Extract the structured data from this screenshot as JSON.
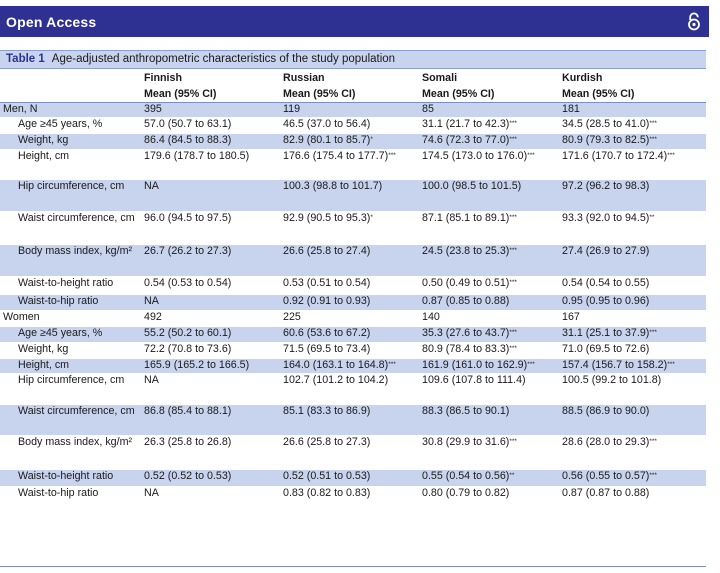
{
  "header": {
    "title": "Open Access",
    "icon": "open-access-icon",
    "color": "#2e3192"
  },
  "caption": {
    "number": "Table 1",
    "text": "Age-adjusted anthropometric characteristics of the study population"
  },
  "columns": [
    "Finnish",
    "Russian",
    "Somali",
    "Kurdish"
  ],
  "subheader": "Mean (95% CI)",
  "rows": [
    {
      "label": "Men, N",
      "group": true,
      "cells": [
        "395",
        "119",
        "85",
        "181"
      ],
      "sups": [
        "",
        "",
        "",
        ""
      ],
      "stripe": true,
      "h": 15
    },
    {
      "label": "Age ≥45 years, %",
      "cells": [
        "57.0 (50.7 to 63.1)",
        "46.5 (37.0 to 56.4)",
        "31.1 (21.7 to 42.3)",
        "34.5 (28.5 to 41.0)"
      ],
      "sups": [
        "",
        "",
        "***",
        "***"
      ],
      "stripe": false,
      "h": 16
    },
    {
      "label": "Weight, kg",
      "cells": [
        "86.4 (84.5 to 88.3)",
        "82.9 (80.1 to 85.7)",
        "74.6 (72.3 to 77.0)",
        "80.9 (79.3 to 82.5)"
      ],
      "sups": [
        "",
        "*",
        "***",
        "***"
      ],
      "stripe": true,
      "h": 16
    },
    {
      "label": "Height, cm",
      "cells": [
        "179.6 (178.7 to 180.5)",
        "176.6 (175.4 to 177.7)",
        "174.5 (173.0 to 176.0)",
        "171.6 (170.7 to 172.4)"
      ],
      "sups": [
        "",
        "***",
        "***",
        "***"
      ],
      "stripe": false,
      "h": 30
    },
    {
      "label": "Hip circumference, cm",
      "cells": [
        "NA",
        "100.3 (98.8 to 101.7)",
        "100.0 (98.5 to 101.5)",
        "97.2 (96.2 to 98.3)"
      ],
      "sups": [
        "",
        "",
        "",
        ""
      ],
      "stripe": true,
      "h": 32
    },
    {
      "label": "Waist circumference, cm",
      "cells": [
        "96.0 (94.5 to 97.5)",
        "92.9 (90.5 to 95.3)",
        "87.1 (85.1 to 89.1)",
        "93.3 (92.0 to 94.5)"
      ],
      "sups": [
        "",
        "*",
        "***",
        "**"
      ],
      "stripe": false,
      "h": 33
    },
    {
      "label": "Body mass index, kg/m²",
      "cells": [
        "26.7 (26.2 to 27.3)",
        "26.6 (25.8 to 27.4)",
        "24.5 (23.8 to 25.3)",
        "27.4 (26.9 to 27.9)"
      ],
      "sups": [
        "",
        "",
        "***",
        ""
      ],
      "stripe": true,
      "h": 32
    },
    {
      "label": "Waist-to-height ratio",
      "cells": [
        "0.54 (0.53 to 0.54)",
        "0.53 (0.51 to 0.54)",
        "0.50 (0.49 to 0.51)",
        "0.54 (0.54 to 0.55)"
      ],
      "sups": [
        "",
        "",
        "***",
        ""
      ],
      "stripe": false,
      "h": 18
    },
    {
      "label": "Waist-to-hip ratio",
      "cells": [
        "NA",
        "0.92 (0.91 to 0.93)",
        "0.87 (0.85 to 0.88)",
        "0.95 (0.95 to 0.96)"
      ],
      "sups": [
        "",
        "",
        "",
        ""
      ],
      "stripe": true,
      "h": 16
    },
    {
      "label": "Women",
      "group": true,
      "cells": [
        "492",
        "225",
        "140",
        "167"
      ],
      "sups": [
        "",
        "",
        "",
        ""
      ],
      "stripe": false,
      "h": 16
    },
    {
      "label": "Age ≥45 years, %",
      "cells": [
        "55.2 (50.2 to 60.1)",
        "60.6 (53.6 to 67.2)",
        "35.3 (27.6 to 43.7)",
        "31.1 (25.1 to 37.9)"
      ],
      "sups": [
        "",
        "",
        "***",
        "***"
      ],
      "stripe": true,
      "h": 16
    },
    {
      "label": "Weight, kg",
      "cells": [
        "72.2 (70.8 to 73.6)",
        "71.5 (69.5 to 73.4)",
        "80.9 (78.4 to 83.3)",
        "71.0 (69.5 to 72.6)"
      ],
      "sups": [
        "",
        "",
        "***",
        ""
      ],
      "stripe": false,
      "h": 16
    },
    {
      "label": "Height, cm",
      "cells": [
        "165.9 (165.2 to 166.5)",
        "164.0 (163.1 to 164.8)",
        "161.9 (161.0 to 162.9)",
        "157.4 (156.7 to 158.2)"
      ],
      "sups": [
        "",
        "***",
        "***",
        "***"
      ],
      "stripe": true,
      "h": 15
    },
    {
      "label": "Hip circumference, cm",
      "cells": [
        "NA",
        "102.7 (101.2 to 104.2)",
        "109.6 (107.8 to 111.4)",
        "100.5 (99.2 to 101.8)"
      ],
      "sups": [
        "",
        "",
        "",
        ""
      ],
      "stripe": false,
      "h": 31
    },
    {
      "label": "Waist circumference, cm",
      "cells": [
        "86.8 (85.4 to 88.1)",
        "85.1 (83.3 to 86.9)",
        "88.3 (86.5 to 90.1)",
        "88.5 (86.9 to 90.0)"
      ],
      "sups": [
        "",
        "",
        "",
        ""
      ],
      "stripe": true,
      "h": 31
    },
    {
      "label": "Body mass index, kg/m²",
      "cells": [
        "26.3 (25.8 to 26.8)",
        "26.6 (25.8 to 27.3)",
        "30.8 (29.9 to 31.6)",
        "28.6 (28.0 to 29.3)"
      ],
      "sups": [
        "",
        "",
        "***",
        "***"
      ],
      "stripe": false,
      "h": 34
    },
    {
      "label": "Waist-to-height ratio",
      "cells": [
        "0.52 (0.52 to 0.53)",
        "0.52 (0.51 to 0.53)",
        "0.55 (0.54 to 0.56)",
        "0.56 (0.55 to 0.57)"
      ],
      "sups": [
        "",
        "",
        "**",
        "***"
      ],
      "stripe": true,
      "h": 17
    },
    {
      "label": "Waist-to-hip ratio",
      "cells": [
        "NA",
        "0.83 (0.82 to 0.83)",
        "0.80 (0.79 to 0.82)",
        "0.87 (0.87 to 0.88)"
      ],
      "sups": [
        "",
        "",
        "",
        ""
      ],
      "stripe": false,
      "h": 16
    }
  ]
}
